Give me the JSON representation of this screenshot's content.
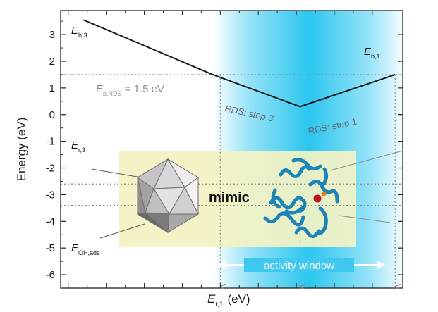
{
  "chart_data": {
    "type": "line",
    "title": "",
    "xlabel": {
      "main": "E",
      "sub": "r,1",
      "unit": "(eV)"
    },
    "ylabel": "Energy (eV)",
    "ylim": [
      -6.5,
      3.9
    ],
    "xlim": [
      -0.1,
      4.4
    ],
    "yticks": [
      3,
      2,
      1,
      0,
      -1,
      -2,
      -3,
      -4,
      -5,
      -6
    ],
    "ytick_labels": [
      "3",
      "2",
      "1",
      "0",
      "-1",
      "-2",
      "-3",
      "-4",
      "-5",
      "-6"
    ],
    "series": [
      {
        "values": [
          {
            "x": 0.2,
            "y": 3.55
          },
          {
            "x": 1.9,
            "y": 1.5
          },
          {
            "x": 3.05,
            "y": 0.3
          },
          {
            "x": 4.3,
            "y": 1.5
          }
        ]
      }
    ],
    "reference_lines": [
      {
        "kind": "horizontal",
        "y": 1.5,
        "style": "dotted"
      },
      {
        "kind": "horizontal",
        "y": -3.4,
        "style": "dotted"
      },
      {
        "kind": "horizontal",
        "y": -2.6,
        "style": "dotted"
      },
      {
        "kind": "vertical",
        "x": 2.0,
        "style": "dotted"
      },
      {
        "kind": "vertical",
        "x": 3.05,
        "style": "dotted"
      },
      {
        "kind": "vertical",
        "x": 4.3,
        "style": "dotted"
      }
    ],
    "activity_window": {
      "x_start": 2.0,
      "x_end": 4.3,
      "color": "#18c1ee"
    },
    "annotations": {
      "eb3": {
        "main": "E",
        "sub": "b,3"
      },
      "eb1": {
        "main": "E",
        "sub": "b,1"
      },
      "ebrds": {
        "main": "E",
        "sub": "b,RDS",
        "suffix": " = 1.5 eV"
      },
      "rds_step3": "RDS: step 3",
      "rds_step1": "RDS: step 1",
      "er3": {
        "main": "E",
        "sub": "r,3"
      },
      "eoh": {
        "main": "E",
        "sub": "OH,ads"
      },
      "mimic": "mimic",
      "activity_window_label": "activity window"
    },
    "inset_box_color": "#f3f2c4",
    "icons": [
      "icosahedron-nanoparticle-icon",
      "protein-ribbon-icon"
    ],
    "colors": {
      "line": "#1a1a1a",
      "axis": "#222222",
      "dotted": "#8a8a8a",
      "protein": "#1c84b8",
      "protein_site": "#c0141e"
    }
  }
}
